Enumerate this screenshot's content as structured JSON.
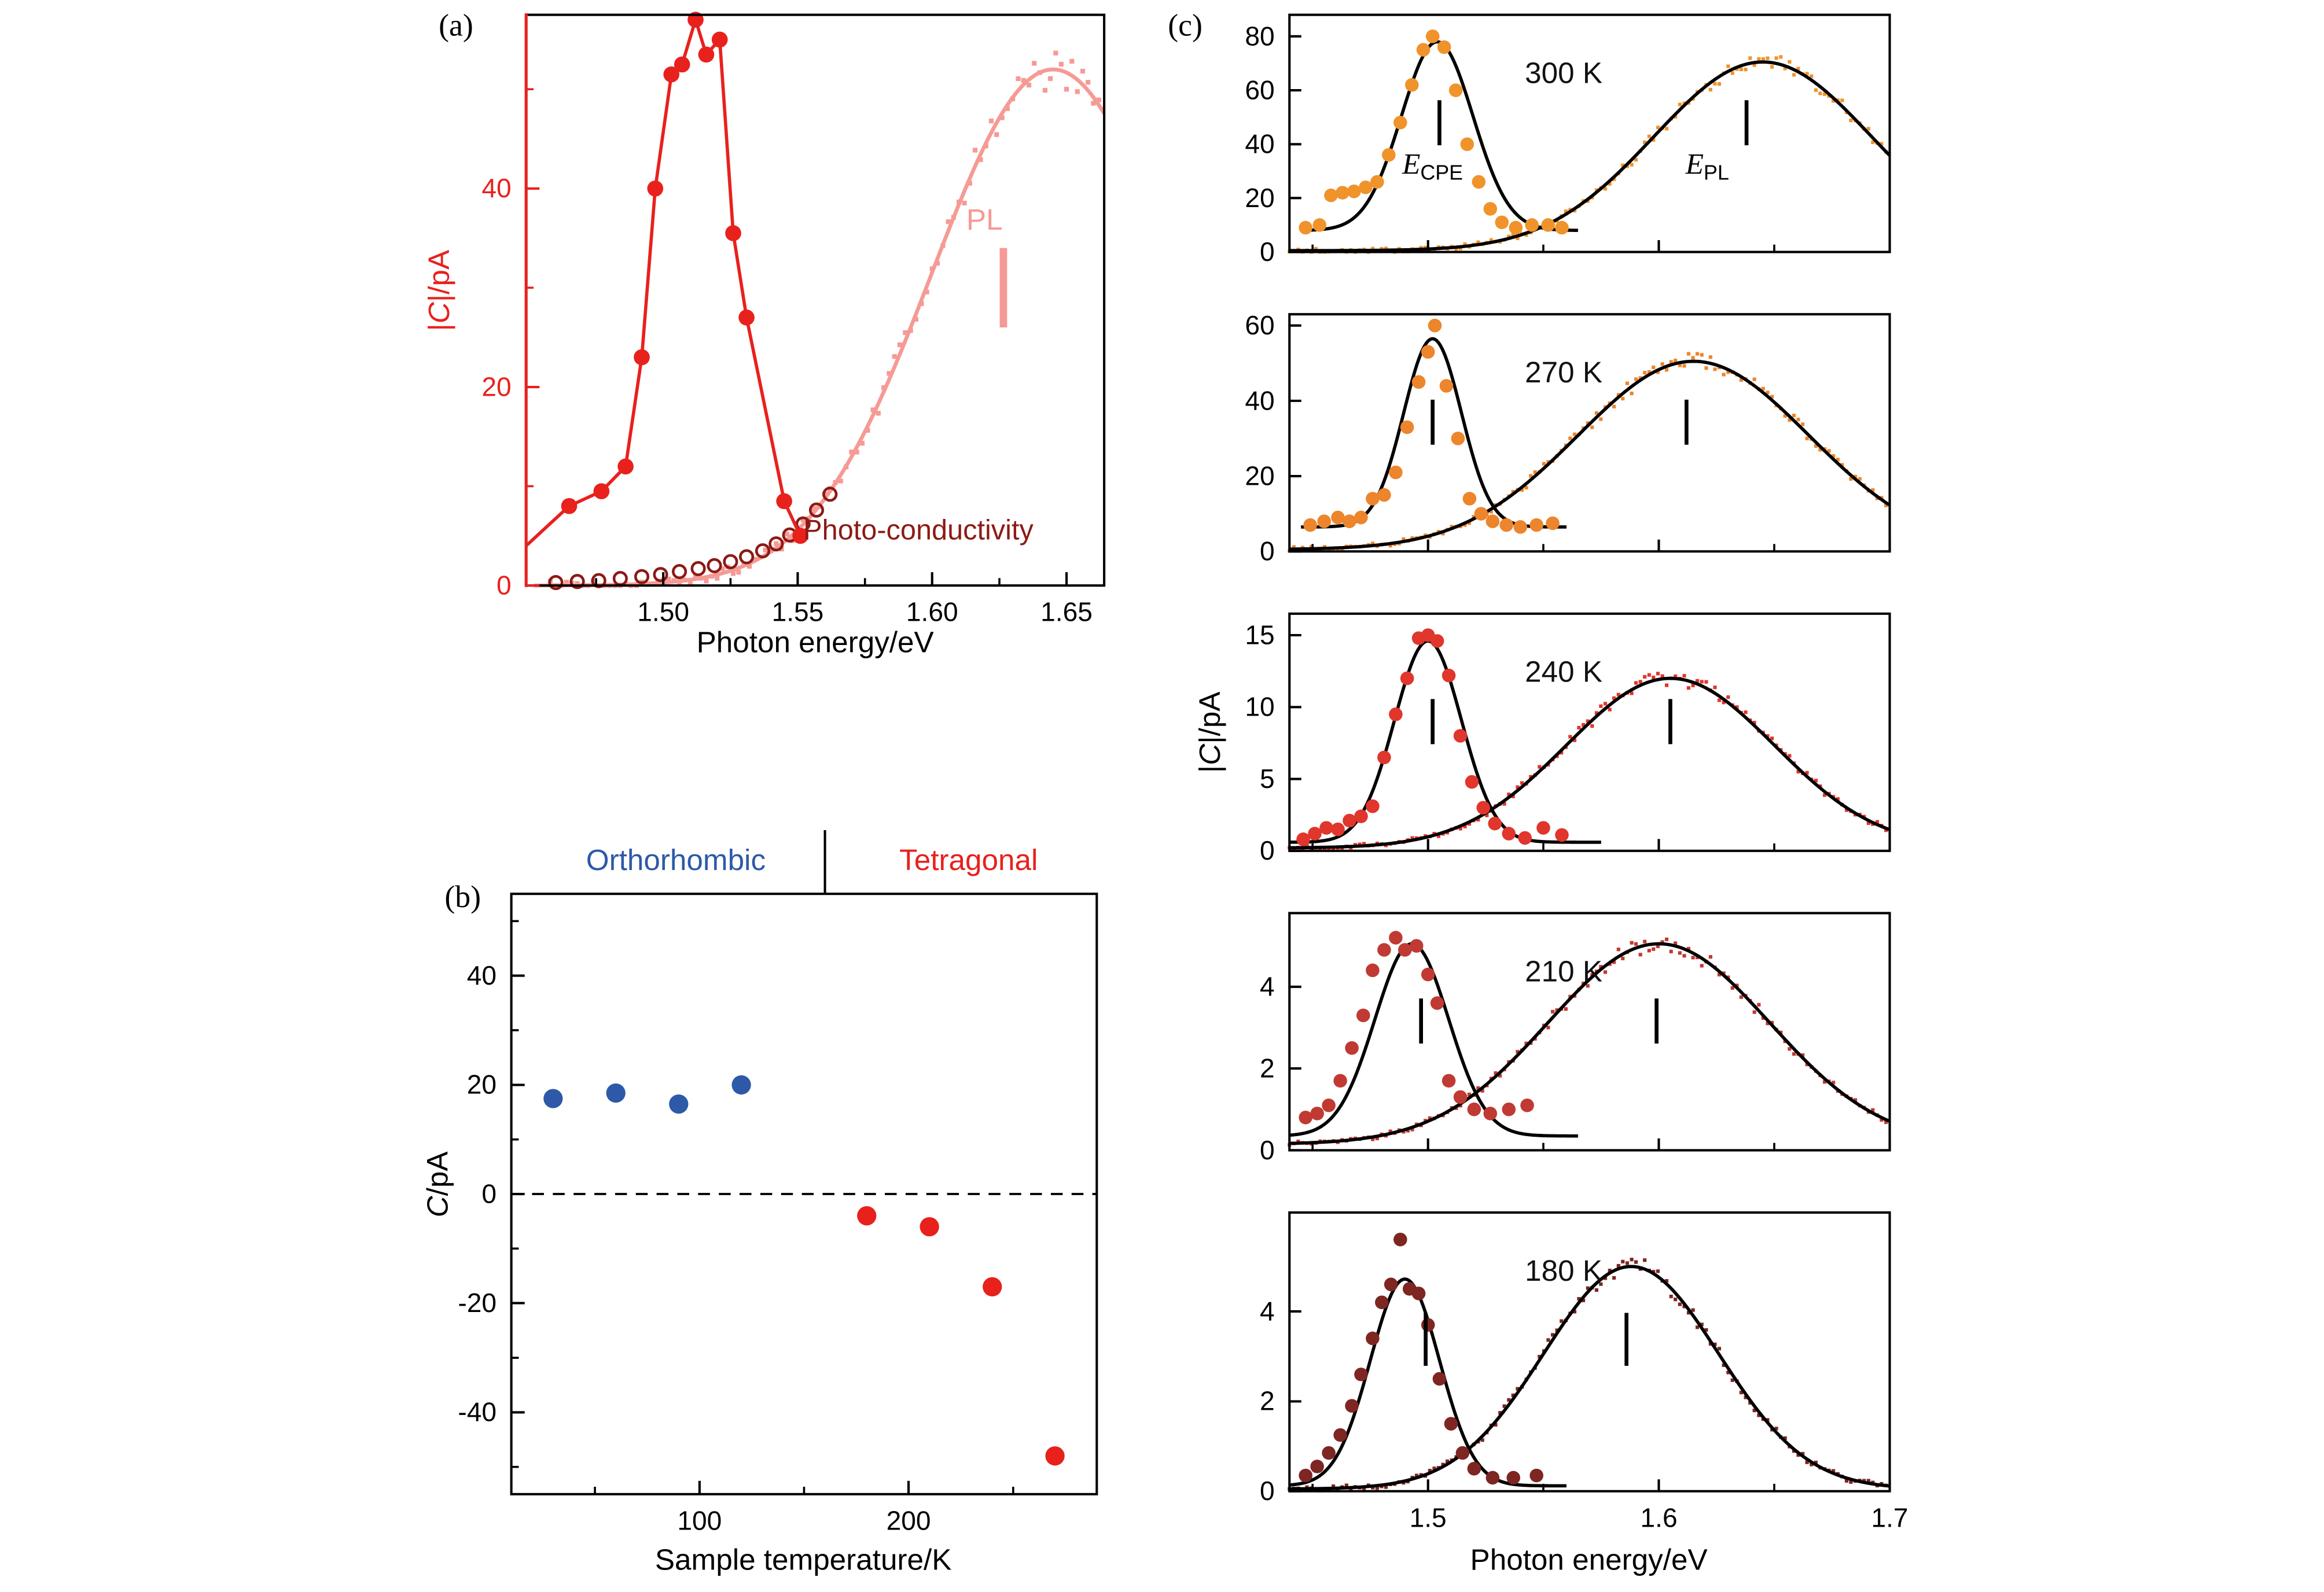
{
  "chart_data": [
    {
      "panel": "a",
      "type": "line+scatter",
      "label": "(a)",
      "x_title": "Photon energy/eV",
      "y_title": "|C|/pA",
      "y_title_parts": {
        "pre": "|",
        "var": "C",
        "post": "|/pA"
      },
      "x_range": [
        1.449,
        1.664
      ],
      "x_ticks": [
        1.5,
        1.55,
        1.6,
        1.65
      ],
      "x_tick_labels": [
        "1.50",
        "1.55",
        "1.60",
        "1.65"
      ],
      "x_minor": [
        1.475,
        1.525,
        1.575,
        1.625
      ],
      "y_range": [
        0,
        57.5
      ],
      "y_ticks": [
        0,
        20,
        40
      ],
      "y_tick_labels": [
        "0",
        "20",
        "40"
      ],
      "y_minor": [
        10,
        30,
        50
      ],
      "pl_marker_bar": {
        "x": 1.6265,
        "y1": 26,
        "y2": 34
      },
      "series": {
        "photocapacitance": {
          "color": "#e8211d",
          "line_start": [
            1.449,
            4
          ],
          "points": [
            [
              1.465,
              8.0
            ],
            [
              1.477,
              9.5
            ],
            [
              1.486,
              12.0
            ],
            [
              1.492,
              23.0
            ],
            [
              1.497,
              40.0
            ],
            [
              1.503,
              51.5
            ],
            [
              1.507,
              52.5
            ],
            [
              1.512,
              57.0
            ],
            [
              1.516,
              53.5
            ],
            [
              1.521,
              55.0
            ],
            [
              1.526,
              35.5
            ],
            [
              1.531,
              27.0
            ],
            [
              1.545,
              8.5
            ],
            [
              1.551,
              5.0
            ]
          ]
        },
        "pl": {
          "label": "PL",
          "color": "#f59a95",
          "fit": {
            "center": 1.645,
            "sigma": 0.045,
            "amp": 52,
            "base": 0
          },
          "marker_range": [
            1.458,
            1.664
          ],
          "marker_step": 0.002
        },
        "photoconductivity": {
          "label": "Photo-conductivity",
          "color": "#8c1a15",
          "points": [
            [
              1.46,
              0.3
            ],
            [
              1.468,
              0.4
            ],
            [
              1.476,
              0.5
            ],
            [
              1.484,
              0.7
            ],
            [
              1.492,
              0.9
            ],
            [
              1.499,
              1.1
            ],
            [
              1.506,
              1.4
            ],
            [
              1.513,
              1.7
            ],
            [
              1.519,
              2.0
            ],
            [
              1.525,
              2.4
            ],
            [
              1.531,
              2.9
            ],
            [
              1.537,
              3.5
            ],
            [
              1.542,
              4.2
            ],
            [
              1.547,
              5.1
            ],
            [
              1.552,
              6.2
            ],
            [
              1.557,
              7.6
            ],
            [
              1.562,
              9.2
            ]
          ]
        }
      }
    },
    {
      "panel": "b",
      "type": "scatter",
      "label": "(b)",
      "x_title": "Sample temperature/K",
      "y_title": "C/pA",
      "y_title_parts": {
        "var": "C",
        "post": "/pA"
      },
      "x_range": [
        10,
        290
      ],
      "x_ticks": [
        100,
        200
      ],
      "x_tick_labels": [
        "100",
        "200"
      ],
      "x_minor": [
        50,
        150,
        250
      ],
      "y_range": [
        -55,
        55
      ],
      "y_ticks": [
        -40,
        -20,
        0,
        20,
        40
      ],
      "y_tick_labels": [
        "-40",
        "-20",
        "0",
        "20",
        "40"
      ],
      "y_minor": [
        -50,
        -30,
        -10,
        10,
        30,
        50
      ],
      "zero_line": true,
      "phase_boundary_x": 160,
      "phases": [
        {
          "label": "Orthorhombic",
          "color": "#2d59a8"
        },
        {
          "label": "Tetragonal",
          "color": "#e8211d"
        }
      ],
      "series": {
        "orthorhombic": {
          "color": "#2d59a8",
          "points": [
            [
              30,
              17.5
            ],
            [
              60,
              18.5
            ],
            [
              90,
              16.5
            ],
            [
              120,
              20
            ]
          ]
        },
        "tetragonal": {
          "color": "#e8211d",
          "points": [
            [
              180,
              -4
            ],
            [
              210,
              -6
            ],
            [
              240,
              -17
            ],
            [
              270,
              -48
            ]
          ]
        }
      }
    },
    {
      "panel": "c",
      "type": "line+scatter",
      "label": "(c)",
      "x_title": "Photon energy/eV",
      "y_title": "|C|/pA",
      "y_title_parts": {
        "pre": "|",
        "var": "C",
        "post": "|/pA"
      },
      "x_range": [
        1.44,
        1.7
      ],
      "x_ticks": [
        1.5,
        1.6,
        1.7
      ],
      "x_tick_labels": [
        "1.5",
        "1.6",
        "1.7"
      ],
      "x_minor": [
        1.45,
        1.55,
        1.65
      ],
      "peak_labels": {
        "cpe": {
          "var": "E",
          "sub": "CPE"
        },
        "pl": {
          "var": "E",
          "sub": "PL"
        }
      },
      "subplots": [
        {
          "temp_label": "300 K",
          "color": "#f0932b",
          "y_max": 88,
          "y_ticks": [
            0,
            20,
            40,
            60,
            80
          ],
          "y_tick_labels": [
            "0",
            "20",
            "40",
            "60",
            "80"
          ],
          "cpe_fit": {
            "center": 1.504,
            "sigma": 0.0155,
            "amp": 70,
            "base": 8,
            "range": [
              1.445,
              1.565
            ]
          },
          "pl_fit": {
            "center": 1.645,
            "sigma": 0.047,
            "amp": 70,
            "base": 0.5,
            "range": [
              1.44,
              1.7
            ]
          },
          "cpe_points": [
            [
              1.447,
              9
            ],
            [
              1.453,
              10
            ],
            [
              1.458,
              21
            ],
            [
              1.463,
              22
            ],
            [
              1.468,
              22.5
            ],
            [
              1.473,
              24
            ],
            [
              1.478,
              26
            ],
            [
              1.483,
              36
            ],
            [
              1.488,
              48
            ],
            [
              1.493,
              62
            ],
            [
              1.498,
              75
            ],
            [
              1.502,
              80
            ],
            [
              1.507,
              76
            ],
            [
              1.512,
              60
            ],
            [
              1.517,
              40
            ],
            [
              1.522,
              26
            ],
            [
              1.527,
              16
            ],
            [
              1.532,
              11
            ],
            [
              1.538,
              9
            ],
            [
              1.545,
              10
            ],
            [
              1.552,
              10
            ],
            [
              1.558,
              9
            ]
          ],
          "marker_step": 0.0019,
          "cpe_marker_x": 1.505,
          "pl_marker_x": 1.638,
          "marker_bar_frac": [
            0.45,
            0.64
          ]
        },
        {
          "temp_label": "270 K",
          "color": "#ed852c",
          "y_max": 63,
          "y_ticks": [
            0,
            20,
            40,
            60
          ],
          "y_tick_labels": [
            "0",
            "20",
            "40",
            "60"
          ],
          "cpe_fit": {
            "center": 1.502,
            "sigma": 0.0125,
            "amp": 50,
            "base": 6.5,
            "range": [
              1.445,
              1.56
            ]
          },
          "pl_fit": {
            "center": 1.615,
            "sigma": 0.05,
            "amp": 50,
            "base": 0.5,
            "range": [
              1.44,
              1.7
            ]
          },
          "cpe_points": [
            [
              1.449,
              7
            ],
            [
              1.455,
              8
            ],
            [
              1.461,
              9
            ],
            [
              1.466,
              8
            ],
            [
              1.471,
              9
            ],
            [
              1.476,
              14
            ],
            [
              1.481,
              15
            ],
            [
              1.486,
              21
            ],
            [
              1.491,
              33
            ],
            [
              1.496,
              45
            ],
            [
              1.5,
              53
            ],
            [
              1.503,
              60
            ],
            [
              1.508,
              44
            ],
            [
              1.513,
              30
            ],
            [
              1.518,
              14
            ],
            [
              1.523,
              10
            ],
            [
              1.528,
              8
            ],
            [
              1.534,
              7
            ],
            [
              1.54,
              6.5
            ],
            [
              1.547,
              7
            ],
            [
              1.554,
              7.5
            ]
          ],
          "marker_step": 0.0019,
          "cpe_marker_x": 1.502,
          "pl_marker_x": 1.612,
          "marker_bar_frac": [
            0.45,
            0.64
          ]
        },
        {
          "temp_label": "240 K",
          "color": "#e0362c",
          "y_max": 16.5,
          "y_ticks": [
            0,
            5,
            10,
            15
          ],
          "y_tick_labels": [
            "0",
            "5",
            "10",
            "15"
          ],
          "cpe_fit": {
            "center": 1.5,
            "sigma": 0.0145,
            "amp": 14,
            "base": 0.6,
            "range": [
              1.44,
              1.575
            ]
          },
          "pl_fit": {
            "center": 1.605,
            "sigma": 0.045,
            "amp": 11.8,
            "base": 0.2,
            "range": [
              1.44,
              1.7
            ]
          },
          "cpe_points": [
            [
              1.446,
              0.8
            ],
            [
              1.451,
              1.2
            ],
            [
              1.456,
              1.6
            ],
            [
              1.461,
              1.5
            ],
            [
              1.466,
              2.1
            ],
            [
              1.471,
              2.4
            ],
            [
              1.476,
              3.1
            ],
            [
              1.481,
              6.5
            ],
            [
              1.486,
              9.5
            ],
            [
              1.491,
              12
            ],
            [
              1.496,
              14.8
            ],
            [
              1.5,
              15
            ],
            [
              1.504,
              14.6
            ],
            [
              1.509,
              12.2
            ],
            [
              1.514,
              8
            ],
            [
              1.519,
              4.8
            ],
            [
              1.524,
              3
            ],
            [
              1.529,
              1.9
            ],
            [
              1.535,
              1.2
            ],
            [
              1.542,
              0.9
            ],
            [
              1.55,
              1.6
            ],
            [
              1.558,
              1.1
            ]
          ],
          "marker_step": 0.0019,
          "cpe_marker_x": 1.502,
          "pl_marker_x": 1.605,
          "marker_bar_frac": [
            0.45,
            0.64
          ]
        },
        {
          "temp_label": "210 K",
          "color": "#c03a33",
          "y_max": 5.8,
          "y_ticks": [
            0,
            2,
            4
          ],
          "y_tick_labels": [
            "0",
            "2",
            "4"
          ],
          "cpe_fit": {
            "center": 1.493,
            "sigma": 0.016,
            "amp": 4.7,
            "base": 0.35,
            "range": [
              1.44,
              1.565
            ]
          },
          "pl_fit": {
            "center": 1.6,
            "sigma": 0.048,
            "amp": 4.9,
            "base": 0.15,
            "range": [
              1.44,
              1.7
            ]
          },
          "cpe_points": [
            [
              1.447,
              0.8
            ],
            [
              1.452,
              0.9
            ],
            [
              1.457,
              1.1
            ],
            [
              1.462,
              1.7
            ],
            [
              1.467,
              2.5
            ],
            [
              1.472,
              3.3
            ],
            [
              1.476,
              4.4
            ],
            [
              1.481,
              4.9
            ],
            [
              1.486,
              5.2
            ],
            [
              1.49,
              4.9
            ],
            [
              1.495,
              5.0
            ],
            [
              1.5,
              4.3
            ],
            [
              1.504,
              3.6
            ],
            [
              1.509,
              1.7
            ],
            [
              1.514,
              1.3
            ],
            [
              1.52,
              1.0
            ],
            [
              1.527,
              0.9
            ],
            [
              1.535,
              1.0
            ],
            [
              1.543,
              1.1
            ]
          ],
          "marker_step": 0.0019,
          "cpe_marker_x": 1.497,
          "pl_marker_x": 1.599,
          "marker_bar_frac": [
            0.45,
            0.64
          ]
        },
        {
          "temp_label": "180 K",
          "color": "#7e2622",
          "y_max": 6.2,
          "y_ticks": [
            0,
            2,
            4
          ],
          "y_tick_labels": [
            "0",
            "2",
            "4"
          ],
          "cpe_fit": {
            "center": 1.49,
            "sigma": 0.015,
            "amp": 4.6,
            "base": 0.12,
            "range": [
              1.44,
              1.56
            ]
          },
          "pl_fit": {
            "center": 1.588,
            "sigma": 0.038,
            "amp": 4.95,
            "base": 0.05,
            "range": [
              1.44,
              1.7
            ]
          },
          "cpe_points": [
            [
              1.447,
              0.35
            ],
            [
              1.452,
              0.55
            ],
            [
              1.457,
              0.85
            ],
            [
              1.462,
              1.25
            ],
            [
              1.467,
              1.9
            ],
            [
              1.471,
              2.6
            ],
            [
              1.476,
              3.4
            ],
            [
              1.48,
              4.2
            ],
            [
              1.484,
              4.6
            ],
            [
              1.488,
              5.6
            ],
            [
              1.492,
              4.5
            ],
            [
              1.496,
              4.4
            ],
            [
              1.5,
              3.7
            ],
            [
              1.505,
              2.5
            ],
            [
              1.51,
              1.5
            ],
            [
              1.515,
              0.85
            ],
            [
              1.52,
              0.5
            ],
            [
              1.528,
              0.3
            ],
            [
              1.537,
              0.3
            ],
            [
              1.547,
              0.35
            ]
          ],
          "marker_step": 0.0019,
          "cpe_marker_x": 1.499,
          "pl_marker_x": 1.586,
          "marker_bar_frac": [
            0.45,
            0.64
          ]
        }
      ]
    }
  ]
}
